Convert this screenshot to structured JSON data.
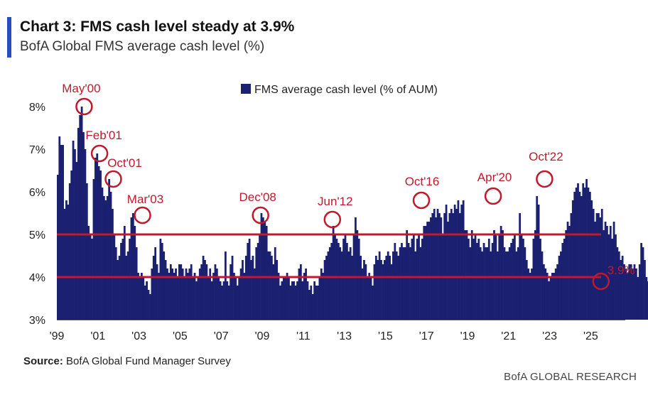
{
  "header": {
    "title": "Chart 3: FMS cash level steady at 3.9%",
    "subtitle": "BofA Global FMS average cash level (%)"
  },
  "footer": {
    "source_label": "Source:",
    "source_text": "BofA Global Fund Manager Survey",
    "credit": "BofA GLOBAL RESEARCH"
  },
  "colors": {
    "bar": "#1b2070",
    "accent": "#c0182c",
    "brand_bar": "#2a4bc4",
    "axis": "#111111"
  },
  "chart_data": {
    "type": "bar",
    "title": "Chart 3: FMS cash level steady at 3.9%",
    "subtitle": "BofA Global FMS average cash level (%)",
    "legend": "FMS average cash level (% of AUM)",
    "legend_position": "top-center",
    "xlabel": "",
    "ylabel": "",
    "x_start_year": 1999,
    "frequency": "monthly",
    "x_tick_labels": [
      "'99",
      "'01",
      "'03",
      "'05",
      "'07",
      "'09",
      "'11",
      "'13",
      "'15",
      "'17",
      "'19",
      "'21",
      "'23",
      "'25"
    ],
    "y_tick_labels": [
      "3%",
      "4%",
      "5%",
      "6%",
      "7%",
      "8%"
    ],
    "ylim": [
      3,
      8.3
    ],
    "reference_lines": [
      5.0,
      4.0
    ],
    "annotations": [
      {
        "label": "May'00",
        "year": 2000.33,
        "value": 8.0
      },
      {
        "label": "Feb'01",
        "year": 2001.08,
        "value": 6.9
      },
      {
        "label": "Oct'01",
        "year": 2001.75,
        "value": 6.3
      },
      {
        "label": "Mar'03",
        "year": 2003.17,
        "value": 5.45
      },
      {
        "label": "Dec'08",
        "year": 2008.92,
        "value": 5.45
      },
      {
        "label": "Jun'12",
        "year": 2012.42,
        "value": 5.35
      },
      {
        "label": "Oct'16",
        "year": 2016.75,
        "value": 5.8
      },
      {
        "label": "Apr'20",
        "year": 2020.25,
        "value": 5.9
      },
      {
        "label": "Oct'22",
        "year": 2022.75,
        "value": 6.3
      },
      {
        "label": "3.9%",
        "year": 2025.5,
        "value": 3.9
      }
    ],
    "values": [
      6.4,
      7.3,
      7.1,
      7.1,
      5.6,
      5.8,
      5.7,
      6.2,
      6.5,
      7.2,
      7.0,
      6.7,
      7.5,
      7.8,
      8.0,
      7.4,
      7.0,
      6.2,
      5.2,
      5.0,
      4.9,
      6.3,
      6.8,
      6.9,
      6.6,
      6.5,
      6.1,
      5.9,
      5.8,
      5.9,
      6.3,
      6.0,
      5.6,
      5.0,
      4.7,
      4.4,
      4.5,
      4.8,
      4.9,
      5.2,
      4.5,
      4.6,
      4.9,
      5.4,
      5.5,
      5.2,
      4.7,
      4.1,
      4.0,
      4.1,
      4.0,
      3.8,
      3.9,
      3.7,
      3.6,
      4.2,
      4.5,
      4.7,
      4.3,
      4.1,
      4.9,
      4.8,
      4.6,
      4.4,
      4.2,
      4.1,
      4.3,
      4.2,
      4.1,
      4.2,
      4.0,
      4.3,
      4.3,
      4.2,
      4.0,
      4.2,
      4.1,
      4.2,
      4.3,
      4.0,
      4.1,
      3.9,
      4.0,
      4.2,
      4.3,
      4.5,
      4.4,
      4.3,
      4.0,
      4.2,
      3.9,
      4.1,
      4.3,
      4.2,
      4.0,
      3.9,
      3.8,
      3.9,
      4.6,
      3.9,
      3.8,
      4.3,
      4.5,
      4.1,
      4.0,
      3.8,
      4.0,
      4.2,
      4.4,
      4.1,
      4.5,
      4.8,
      4.9,
      4.4,
      4.5,
      4.2,
      4.7,
      4.8,
      5.0,
      5.5,
      5.4,
      5.3,
      5.2,
      4.6,
      4.6,
      4.5,
      4.3,
      4.7,
      4.4,
      4.1,
      3.8,
      3.9,
      4.0,
      4.0,
      4.1,
      4.0,
      3.8,
      3.9,
      3.9,
      3.8,
      3.9,
      4.2,
      4.3,
      3.9,
      4.1,
      4.2,
      3.9,
      3.7,
      3.8,
      3.6,
      3.9,
      3.8,
      3.8,
      4.0,
      4.2,
      4.1,
      4.4,
      4.5,
      4.6,
      4.7,
      4.8,
      5.2,
      5.0,
      4.9,
      4.8,
      4.7,
      4.6,
      4.9,
      5.0,
      4.8,
      4.6,
      4.7,
      4.5,
      5.0,
      5.4,
      5.1,
      4.9,
      4.5,
      4.2,
      4.4,
      4.3,
      4.0,
      4.1,
      4.0,
      3.8,
      4.3,
      4.5,
      4.4,
      4.6,
      4.4,
      4.3,
      4.4,
      4.5,
      4.6,
      4.5,
      4.3,
      4.6,
      4.8,
      4.6,
      4.5,
      4.7,
      4.8,
      4.7,
      4.7,
      5.1,
      4.8,
      4.7,
      4.9,
      5.0,
      4.6,
      4.9,
      5.0,
      4.7,
      4.9,
      5.2,
      5.2,
      5.3,
      5.3,
      5.4,
      5.5,
      5.6,
      5.4,
      5.6,
      5.5,
      5.4,
      5.0,
      5.5,
      5.7,
      5.3,
      5.5,
      5.6,
      5.5,
      5.7,
      5.6,
      5.8,
      5.5,
      5.7,
      5.8,
      5.1,
      5.1,
      4.9,
      4.7,
      5.1,
      4.9,
      5.0,
      4.8,
      4.9,
      4.7,
      4.6,
      4.8,
      4.7,
      4.7,
      4.9,
      4.6,
      4.8,
      5.1,
      5.0,
      4.6,
      5.0,
      5.2,
      5.1,
      4.7,
      4.6,
      4.6,
      4.7,
      4.8,
      4.9,
      5.0,
      4.6,
      4.7,
      5.5,
      5.0,
      4.9,
      4.7,
      4.4,
      4.2,
      4.1,
      4.2,
      4.9,
      5.1,
      5.9,
      5.7,
      4.9,
      4.6,
      4.3,
      4.2,
      4.1,
      3.9,
      4.0,
      4.1,
      4.1,
      4.2,
      4.3,
      4.5,
      4.6,
      4.8,
      4.9,
      5.1,
      5.3,
      5.2,
      5.5,
      5.8,
      6.0,
      6.1,
      6.2,
      6.0,
      5.9,
      6.2,
      6.1,
      6.3,
      6.1,
      6.0,
      5.8,
      5.6,
      5.3,
      5.5,
      5.5,
      5.4,
      5.6,
      5.1,
      5.3,
      5.2,
      5.0,
      5.2,
      4.9,
      5.3,
      5.0,
      4.7,
      4.6,
      4.4,
      4.5,
      4.3,
      4.2,
      4.1,
      4.3,
      4.3,
      4.2,
      4.3,
      4.2,
      4.0,
      4.3,
      4.8,
      4.7,
      4.4,
      4.0,
      3.9,
      3.9
    ]
  }
}
